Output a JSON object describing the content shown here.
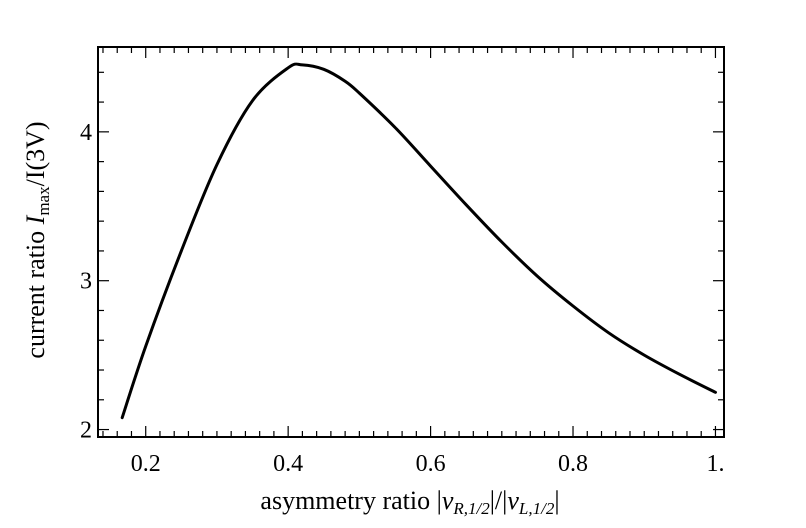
{
  "chart_data": {
    "type": "line",
    "xlabel": {
      "prefix": "asymmetry ratio |",
      "nu1": "ν",
      "sub1": "R,1/2",
      "mid": "|/|",
      "nu2": "ν",
      "sub2": "L,1/2",
      "suffix": "|"
    },
    "ylabel": {
      "prefix": "current ratio ",
      "var": "I",
      "sub": "max",
      "suffix": "/I(3V)"
    },
    "xlim": [
      0.133,
      1.012
    ],
    "ylim": [
      1.95,
      4.57
    ],
    "x_ticks": [
      {
        "value": 0.2,
        "label": "0.2"
      },
      {
        "value": 0.4,
        "label": "0.4"
      },
      {
        "value": 0.6,
        "label": "0.6"
      },
      {
        "value": 0.8,
        "label": "0.8"
      },
      {
        "value": 1.0,
        "label": "1."
      }
    ],
    "y_ticks": [
      {
        "value": 2,
        "label": "2"
      },
      {
        "value": 3,
        "label": "3"
      },
      {
        "value": 4,
        "label": "4"
      }
    ],
    "x_minor_step": 0.02,
    "y_minor_step": 0.2,
    "grid": false,
    "series": [
      {
        "color": "#000000",
        "x": [
          0.167,
          0.2,
          0.25,
          0.3,
          0.35,
          0.4,
          0.42,
          0.45,
          0.48,
          0.5,
          0.55,
          0.6,
          0.65,
          0.7,
          0.75,
          0.8,
          0.85,
          0.9,
          0.95,
          1.0
        ],
        "y": [
          2.08,
          2.56,
          3.2,
          3.78,
          4.21,
          4.43,
          4.45,
          4.42,
          4.34,
          4.26,
          4.03,
          3.77,
          3.51,
          3.26,
          3.03,
          2.83,
          2.65,
          2.5,
          2.37,
          2.25
        ]
      }
    ]
  }
}
